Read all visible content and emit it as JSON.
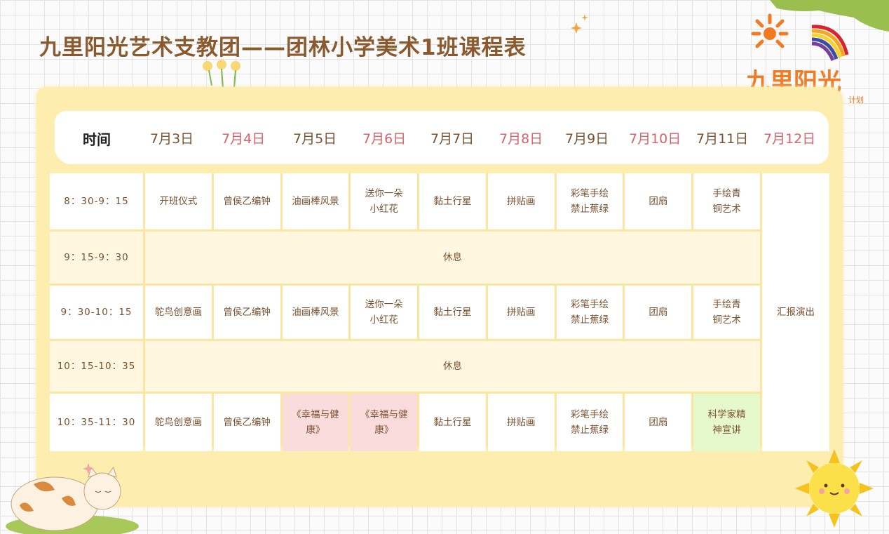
{
  "title": "九里阳光艺术支教团——团林小学美术1班课程表",
  "logo": {
    "text": "九里阳光",
    "subtext": "计划"
  },
  "colors": {
    "title": "#8a5a2e",
    "text": "#7a5230",
    "date_pink": "#d9636a",
    "panel": "#fdeeb0",
    "break_row": "#fff7df",
    "highlight_pink": "#fbdcdc",
    "highlight_green": "#e6f9cc"
  },
  "header": {
    "time_label": "时间",
    "dates": [
      "7月3日",
      "7月4日",
      "7月5日",
      "7月6日",
      "7月7日",
      "7月8日",
      "7月9日",
      "7月10日",
      "7月11日",
      "7月12日"
    ]
  },
  "rows": [
    {
      "time": "8：30-9：15",
      "cells": [
        "开班仪式",
        "曾侯乙编钟",
        "油画棒风景",
        "送你一朵\n小红花",
        "黏土行星",
        "拼贴画",
        "彩笔手绘\n禁止蕉绿",
        "团扇",
        "手绘青\n铜艺术"
      ]
    },
    {
      "time": "9：15-9：30",
      "break": "休息"
    },
    {
      "time": "9：30-10：15",
      "cells": [
        "鸵鸟创意画",
        "曾侯乙编钟",
        "油画棒风景",
        "送你一朵\n小红花",
        "黏土行星",
        "拼贴画",
        "彩笔手绘\n禁止蕉绿",
        "团扇",
        "手绘青\n铜艺术"
      ]
    },
    {
      "time": "10：15-10：35",
      "break": "休息"
    },
    {
      "time": "10：35-11：30",
      "cells": [
        "鸵鸟创意画",
        "曾侯乙编钟",
        "《幸福与健\n康》",
        "《幸福与健\n康》",
        "黏土行星",
        "拼贴画",
        "彩笔手绘\n禁止蕉绿",
        "团扇",
        "科学家精\n神宣讲"
      ]
    }
  ],
  "last_day": "汇报演出"
}
